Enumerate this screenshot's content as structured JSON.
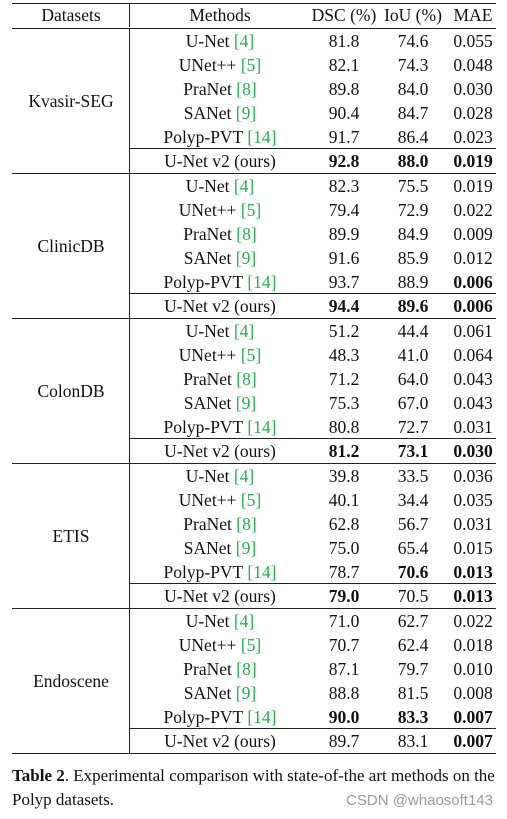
{
  "header": {
    "datasets": "Datasets",
    "methods": "Methods",
    "dsc": "DSC (%)",
    "iou": "IoU (%)",
    "mae": "MAE"
  },
  "groups": [
    {
      "name": "Kvasir-SEG",
      "rows": [
        {
          "method": "U-Net",
          "ref": "4",
          "dsc": "81.8",
          "iou": "74.6",
          "mae": "0.055",
          "bold": []
        },
        {
          "method": "UNet++",
          "ref": "5",
          "dsc": "82.1",
          "iou": "74.3",
          "mae": "0.048",
          "bold": []
        },
        {
          "method": "PraNet",
          "ref": "8",
          "dsc": "89.8",
          "iou": "84.0",
          "mae": "0.030",
          "bold": []
        },
        {
          "method": "SANet",
          "ref": "9",
          "dsc": "90.4",
          "iou": "84.7",
          "mae": "0.028",
          "bold": []
        },
        {
          "method": "Polyp-PVT",
          "ref": "14",
          "dsc": "91.7",
          "iou": "86.4",
          "mae": "0.023",
          "bold": []
        },
        {
          "method": "U-Net v2 (ours)",
          "ref": "",
          "dsc": "92.8",
          "iou": "88.0",
          "mae": "0.019",
          "bold": [
            "dsc",
            "iou",
            "mae"
          ]
        }
      ]
    },
    {
      "name": "ClinicDB",
      "rows": [
        {
          "method": "U-Net",
          "ref": "4",
          "dsc": "82.3",
          "iou": "75.5",
          "mae": "0.019",
          "bold": []
        },
        {
          "method": "UNet++",
          "ref": "5",
          "dsc": "79.4",
          "iou": "72.9",
          "mae": "0.022",
          "bold": []
        },
        {
          "method": "PraNet",
          "ref": "8",
          "dsc": "89.9",
          "iou": "84.9",
          "mae": "0.009",
          "bold": []
        },
        {
          "method": "SANet",
          "ref": "9",
          "dsc": "91.6",
          "iou": "85.9",
          "mae": "0.012",
          "bold": []
        },
        {
          "method": "Polyp-PVT",
          "ref": "14",
          "dsc": "93.7",
          "iou": "88.9",
          "mae": "0.006",
          "bold": [
            "mae"
          ]
        },
        {
          "method": "U-Net v2 (ours)",
          "ref": "",
          "dsc": "94.4",
          "iou": "89.6",
          "mae": "0.006",
          "bold": [
            "dsc",
            "iou",
            "mae"
          ]
        }
      ]
    },
    {
      "name": "ColonDB",
      "rows": [
        {
          "method": "U-Net",
          "ref": "4",
          "dsc": "51.2",
          "iou": "44.4",
          "mae": "0.061",
          "bold": []
        },
        {
          "method": "UNet++",
          "ref": "5",
          "dsc": "48.3",
          "iou": "41.0",
          "mae": "0.064",
          "bold": []
        },
        {
          "method": "PraNet",
          "ref": "8",
          "dsc": "71.2",
          "iou": "64.0",
          "mae": "0.043",
          "bold": []
        },
        {
          "method": "SANet",
          "ref": "9",
          "dsc": "75.3",
          "iou": "67.0",
          "mae": "0.043",
          "bold": []
        },
        {
          "method": "Polyp-PVT",
          "ref": "14",
          "dsc": "80.8",
          "iou": "72.7",
          "mae": "0.031",
          "bold": []
        },
        {
          "method": "U-Net v2 (ours)",
          "ref": "",
          "dsc": "81.2",
          "iou": "73.1",
          "mae": "0.030",
          "bold": [
            "dsc",
            "iou",
            "mae"
          ]
        }
      ]
    },
    {
      "name": "ETIS",
      "rows": [
        {
          "method": "U-Net",
          "ref": "4",
          "dsc": "39.8",
          "iou": "33.5",
          "mae": "0.036",
          "bold": []
        },
        {
          "method": "UNet++",
          "ref": "5",
          "dsc": "40.1",
          "iou": "34.4",
          "mae": "0.035",
          "bold": []
        },
        {
          "method": "PraNet",
          "ref": "8",
          "dsc": "62.8",
          "iou": "56.7",
          "mae": "0.031",
          "bold": []
        },
        {
          "method": "SANet",
          "ref": "9",
          "dsc": "75.0",
          "iou": "65.4",
          "mae": "0.015",
          "bold": []
        },
        {
          "method": "Polyp-PVT",
          "ref": "14",
          "dsc": "78.7",
          "iou": "70.6",
          "mae": "0.013",
          "bold": [
            "iou",
            "mae"
          ]
        },
        {
          "method": "U-Net v2 (ours)",
          "ref": "",
          "dsc": "79.0",
          "iou": "70.5",
          "mae": "0.013",
          "bold": [
            "dsc",
            "mae"
          ]
        }
      ]
    },
    {
      "name": "Endoscene",
      "rows": [
        {
          "method": "U-Net",
          "ref": "4",
          "dsc": "71.0",
          "iou": "62.7",
          "mae": "0.022",
          "bold": []
        },
        {
          "method": "UNet++",
          "ref": "5",
          "dsc": "70.7",
          "iou": "62.4",
          "mae": "0.018",
          "bold": []
        },
        {
          "method": "PraNet",
          "ref": "8",
          "dsc": "87.1",
          "iou": "79.7",
          "mae": "0.010",
          "bold": []
        },
        {
          "method": "SANet",
          "ref": "9",
          "dsc": "88.8",
          "iou": "81.5",
          "mae": "0.008",
          "bold": []
        },
        {
          "method": "Polyp-PVT",
          "ref": "14",
          "dsc": "90.0",
          "iou": "83.3",
          "mae": "0.007",
          "bold": [
            "dsc",
            "iou",
            "mae"
          ]
        },
        {
          "method": "U-Net v2 (ours)",
          "ref": "",
          "dsc": "89.7",
          "iou": "83.1",
          "mae": "0.007",
          "bold": [
            "mae"
          ]
        }
      ]
    }
  ],
  "caption": {
    "label": "Table 2",
    "text": ". Experimental comparison with state-of-the art methods on the Polyp datasets."
  },
  "watermark": "CSDN @whaosoft143"
}
